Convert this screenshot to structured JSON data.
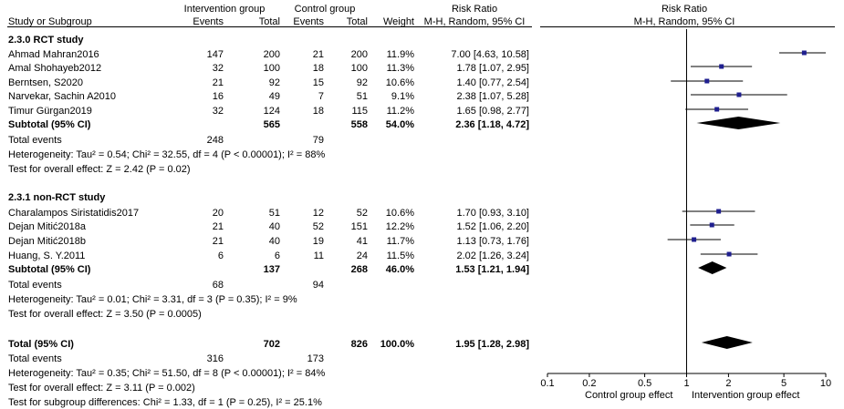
{
  "header": {
    "study": "Study or Subgroup",
    "intervention_group": "Intervention group",
    "control_group": "Control group",
    "events": "Events",
    "total": "Total",
    "weight": "Weight",
    "risk_ratio": "Risk Ratio",
    "method": "M-H, Random, 95% CI"
  },
  "groups": [
    {
      "title": "2.3.0 RCT study",
      "studies": [
        {
          "name": "Ahmad Mahran2016",
          "ie": "147",
          "it": "200",
          "ce": "21",
          "ct": "200",
          "w": "11.9%",
          "rr": "7.00 [4.63, 10.58]"
        },
        {
          "name": "Amal Shohayeb2012",
          "ie": "32",
          "it": "100",
          "ce": "18",
          "ct": "100",
          "w": "11.3%",
          "rr": "1.78 [1.07, 2.95]"
        },
        {
          "name": "Berntsen, S2020",
          "ie": "21",
          "it": "92",
          "ce": "15",
          "ct": "92",
          "w": "10.6%",
          "rr": "1.40 [0.77, 2.54]"
        },
        {
          "name": "Narvekar, Sachin A2010",
          "ie": "16",
          "it": "49",
          "ce": "7",
          "ct": "51",
          "w": "9.1%",
          "rr": "2.38 [1.07, 5.28]"
        },
        {
          "name": "Timur Gürgan2019",
          "ie": "32",
          "it": "124",
          "ce": "18",
          "ct": "115",
          "w": "11.2%",
          "rr": "1.65 [0.98, 2.77]"
        }
      ],
      "subtotal": {
        "label": "Subtotal (95% CI)",
        "it": "565",
        "ct": "558",
        "w": "54.0%",
        "rr": "2.36 [1.18, 4.72]"
      },
      "total_events": {
        "label": "Total events",
        "ie": "248",
        "ce": "79"
      },
      "heterogeneity": "Heterogeneity: Tau² = 0.54; Chi² = 32.55, df = 4 (P < 0.00001); I² = 88%",
      "overall": "Test for overall effect: Z = 2.42 (P = 0.02)"
    },
    {
      "title": "2.3.1 non-RCT study",
      "studies": [
        {
          "name": "Charalampos Siristatidis2017",
          "ie": "20",
          "it": "51",
          "ce": "12",
          "ct": "52",
          "w": "10.6%",
          "rr": "1.70 [0.93, 3.10]"
        },
        {
          "name": "Dejan Mitić2018a",
          "ie": "21",
          "it": "40",
          "ce": "52",
          "ct": "151",
          "w": "12.2%",
          "rr": "1.52 [1.06, 2.20]"
        },
        {
          "name": "Dejan Mitić2018b",
          "ie": "21",
          "it": "40",
          "ce": "19",
          "ct": "41",
          "w": "11.7%",
          "rr": "1.13 [0.73, 1.76]"
        },
        {
          "name": "Huang, S. Y.2011",
          "ie": "6",
          "it": "6",
          "ce": "11",
          "ct": "24",
          "w": "11.5%",
          "rr": "2.02 [1.26, 3.24]"
        }
      ],
      "subtotal": {
        "label": "Subtotal (95% CI)",
        "it": "137",
        "ct": "268",
        "w": "46.0%",
        "rr": "1.53 [1.21, 1.94]"
      },
      "total_events": {
        "label": "Total events",
        "ie": "68",
        "ce": "94"
      },
      "heterogeneity": "Heterogeneity: Tau² = 0.01; Chi² = 3.31, df = 3 (P = 0.35); I² = 9%",
      "overall": "Test for overall effect: Z = 3.50 (P = 0.0005)"
    }
  ],
  "total": {
    "label": "Total (95% CI)",
    "it": "702",
    "ct": "826",
    "w": "100.0%",
    "rr": "1.95 [1.28, 2.98]"
  },
  "total_events": {
    "label": "Total events",
    "ie": "316",
    "ce": "173"
  },
  "heterogeneity": "Heterogeneity: Tau² = 0.35; Chi² = 51.50, df = 8 (P < 0.00001); I² = 84%",
  "overall": "Test for overall effect: Z = 3.11 (P = 0.002)",
  "subgroup_diff": "Test for subgroup differences: Chi² = 1.33, df = 1 (P = 0.25), I² = 25.1%",
  "chart_data": {
    "type": "scatter",
    "scale": "log",
    "xlim": [
      0.1,
      10
    ],
    "ticks": [
      0.1,
      0.2,
      0.5,
      1,
      2,
      5,
      10
    ],
    "tick_labels": [
      "0.1",
      "0.2",
      "0.5",
      "1",
      "2",
      "5",
      "10"
    ],
    "left_label": "Control group effect",
    "right_label": "Intervention group effect",
    "studies": [
      {
        "name": "Ahmad Mahran2016",
        "rr": 7.0,
        "lo": 4.63,
        "hi": 10.58
      },
      {
        "name": "Amal Shohayeb2012",
        "rr": 1.78,
        "lo": 1.07,
        "hi": 2.95
      },
      {
        "name": "Berntsen, S2020",
        "rr": 1.4,
        "lo": 0.77,
        "hi": 2.54
      },
      {
        "name": "Narvekar, Sachin A2010",
        "rr": 2.38,
        "lo": 1.07,
        "hi": 5.28
      },
      {
        "name": "Timur Gürgan2019",
        "rr": 1.65,
        "lo": 0.98,
        "hi": 2.77
      },
      {
        "name": "Charalampos Siristatidis2017",
        "rr": 1.7,
        "lo": 0.93,
        "hi": 3.1
      },
      {
        "name": "Dejan Mitić2018a",
        "rr": 1.52,
        "lo": 1.06,
        "hi": 2.2
      },
      {
        "name": "Dejan Mitić2018b",
        "rr": 1.13,
        "lo": 0.73,
        "hi": 1.76
      },
      {
        "name": "Huang, S. Y.2011",
        "rr": 2.02,
        "lo": 1.26,
        "hi": 3.24
      }
    ],
    "pooled": [
      {
        "name": "Subtotal RCT",
        "rr": 2.36,
        "lo": 1.18,
        "hi": 4.72
      },
      {
        "name": "Subtotal non-RCT",
        "rr": 1.53,
        "lo": 1.21,
        "hi": 1.94
      },
      {
        "name": "Total",
        "rr": 1.95,
        "lo": 1.28,
        "hi": 2.98
      }
    ],
    "header_title": "Risk Ratio",
    "header_method": "M-H, Random, 95% CI"
  }
}
